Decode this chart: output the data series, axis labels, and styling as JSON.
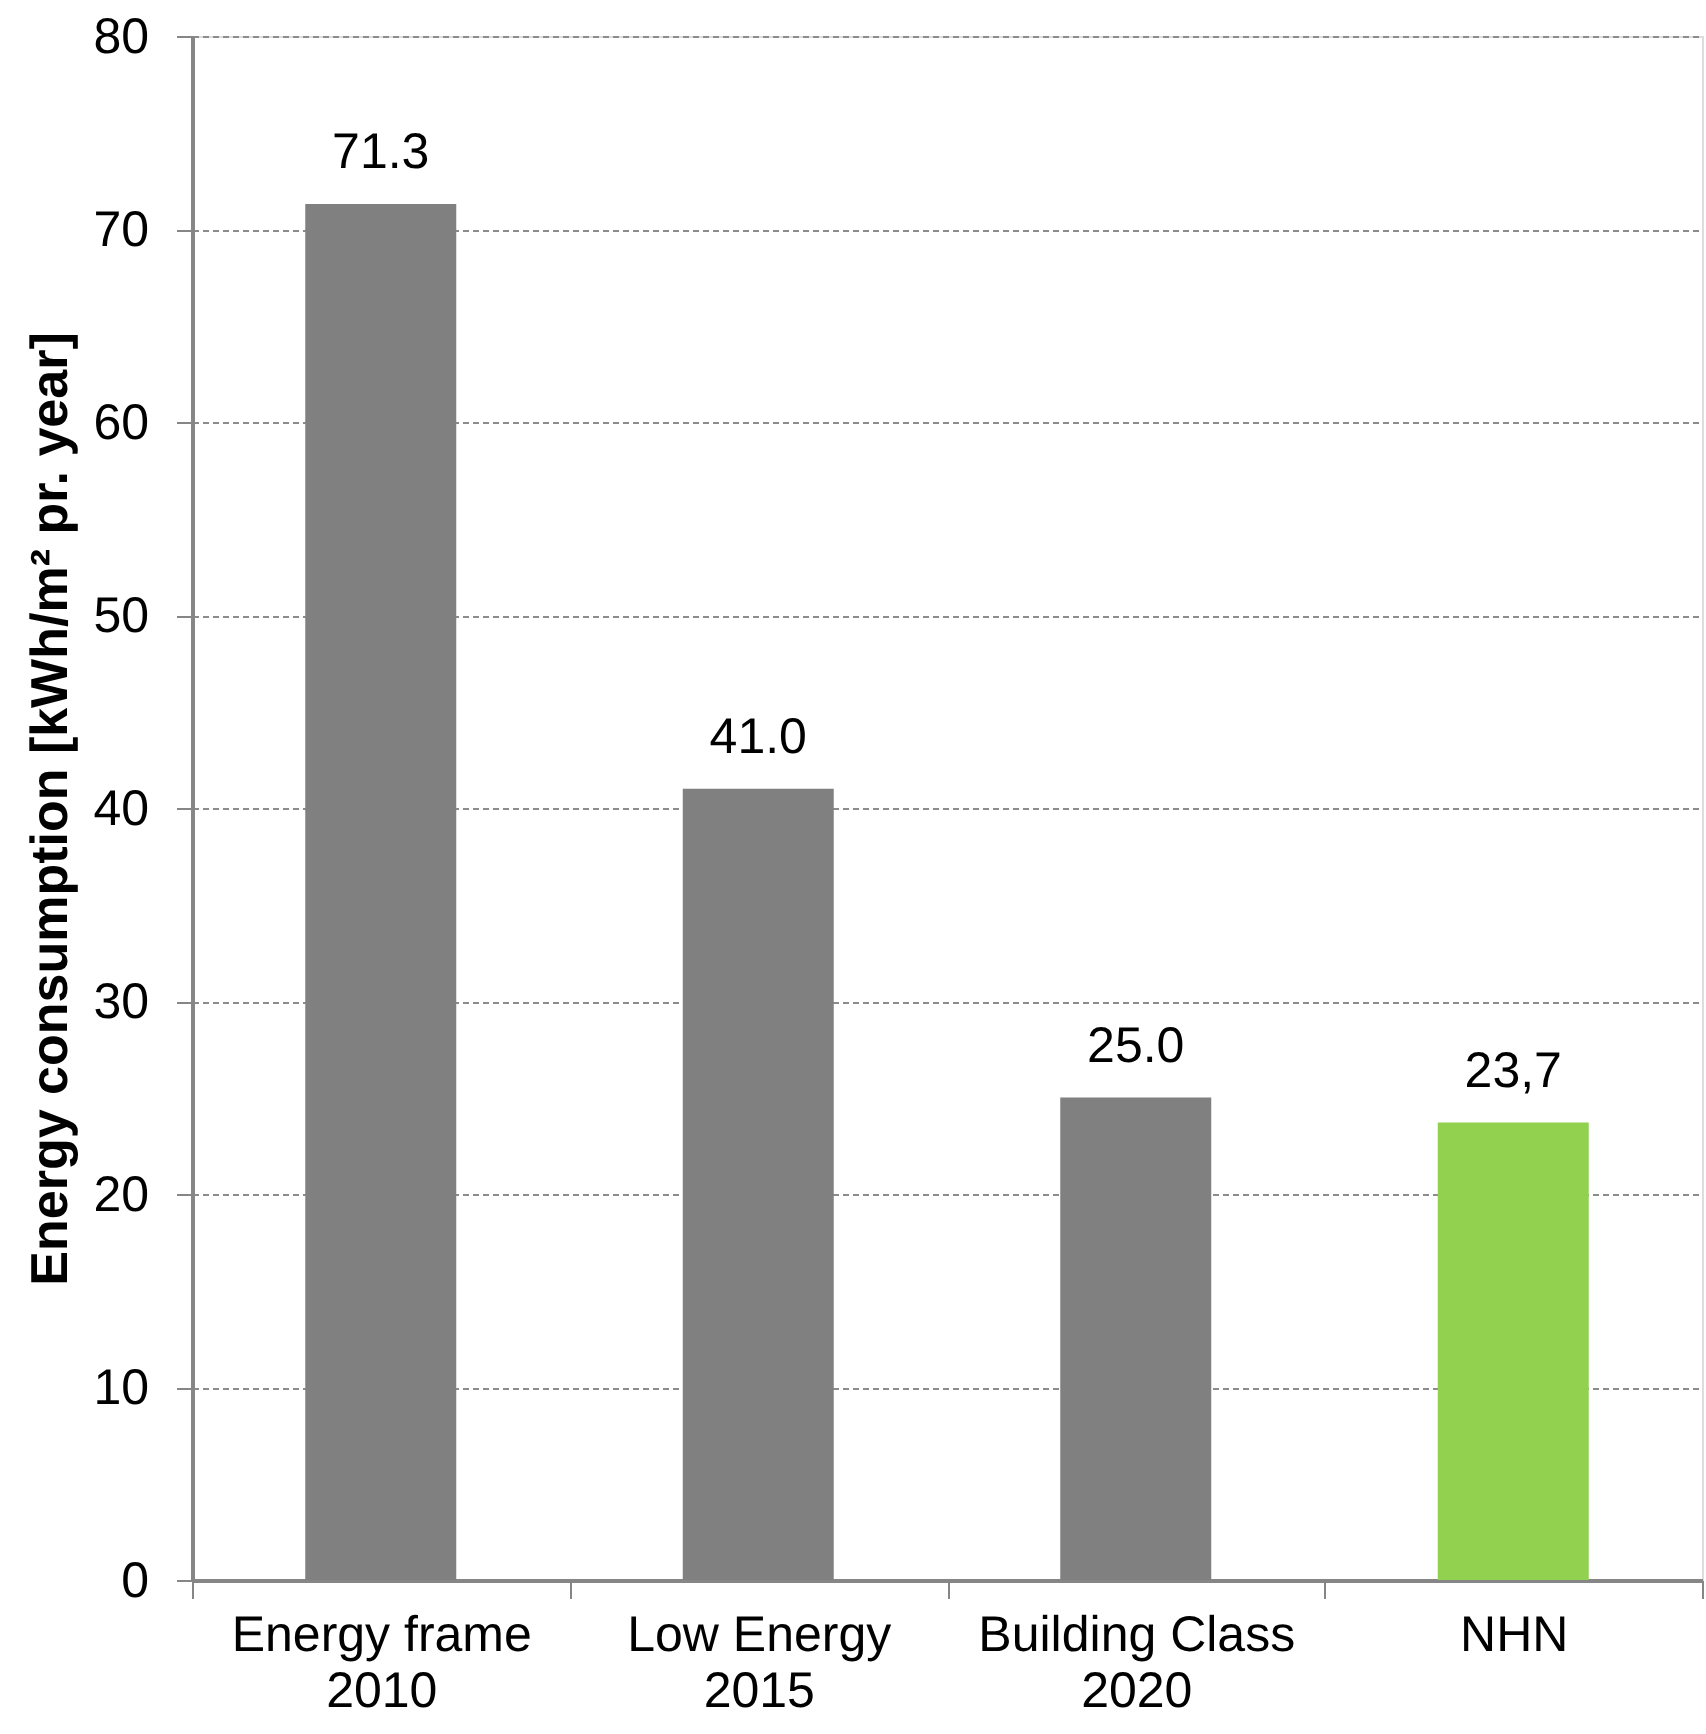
{
  "chart_data": {
    "type": "bar",
    "ylabel": "Energy consumption [kWh/m² pr. year]",
    "categories": [
      "Energy frame\n2010",
      "Low Energy\n2015",
      "Building Class\n2020",
      "NHN"
    ],
    "values": [
      71.3,
      41.0,
      25.0,
      23.7
    ],
    "colors": [
      "#808080",
      "#808080",
      "#808080",
      "#92d050"
    ],
    "value_labels": [
      "71.3",
      "41.0",
      "25.0",
      "23,7"
    ],
    "ylim": [
      0,
      80
    ],
    "yticks": [
      0,
      10,
      20,
      30,
      40,
      50,
      60,
      70,
      80
    ],
    "grid": "y"
  }
}
